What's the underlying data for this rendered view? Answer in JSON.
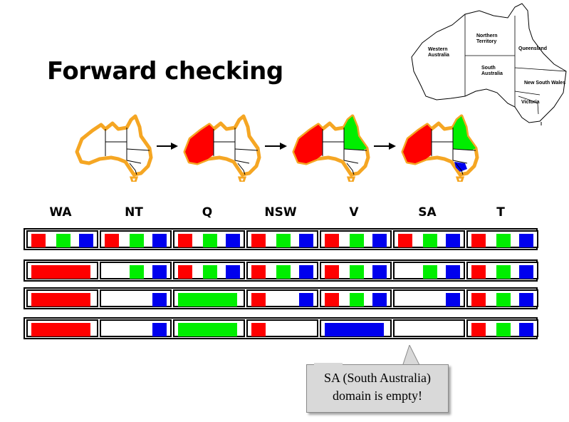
{
  "title": "Forward checking",
  "map_labels": {
    "western_australia": [
      "Western",
      "Australia"
    ],
    "northern_territory": [
      "Northern",
      "Territory"
    ],
    "queensland": "Queensland",
    "south_australia": [
      "South",
      "Australia"
    ],
    "new_south_wales": "New South Wales",
    "victoria": "Victoria"
  },
  "colors": {
    "red": "#ff0000",
    "green": "#00ee00",
    "blue": "#0000ee",
    "map_outline": "#f5a623"
  },
  "sequence_maps": [
    {
      "WA": null,
      "Q": null,
      "V": null
    },
    {
      "WA": "red",
      "Q": null,
      "V": null
    },
    {
      "WA": "red",
      "Q": "green",
      "V": null
    },
    {
      "WA": "red",
      "Q": "green",
      "V": "blue"
    }
  ],
  "columns": [
    "WA",
    "NT",
    "Q",
    "NSW",
    "V",
    "SA",
    "T"
  ],
  "rows": [
    [
      [
        "red",
        "green",
        "blue"
      ],
      [
        "red",
        "green",
        "blue"
      ],
      [
        "red",
        "green",
        "blue"
      ],
      [
        "red",
        "green",
        "blue"
      ],
      [
        "red",
        "green",
        "blue"
      ],
      [
        "red",
        "green",
        "blue"
      ],
      [
        "red",
        "green",
        "blue"
      ]
    ],
    [
      [
        "red"
      ],
      [
        "green",
        "blue"
      ],
      [
        "red",
        "green",
        "blue"
      ],
      [
        "red",
        "green",
        "blue"
      ],
      [
        "red",
        "green",
        "blue"
      ],
      [
        "green",
        "blue"
      ],
      [
        "red",
        "green",
        "blue"
      ]
    ],
    [
      [
        "red"
      ],
      [
        "blue"
      ],
      [
        "green"
      ],
      [
        "red",
        "blue"
      ],
      [
        "red",
        "green",
        "blue"
      ],
      [
        "blue"
      ],
      [
        "red",
        "green",
        "blue"
      ]
    ],
    [
      [
        "red"
      ],
      [
        "blue"
      ],
      [
        "green"
      ],
      [
        "red"
      ],
      [
        "blue"
      ],
      [],
      [
        "red",
        "green",
        "blue"
      ]
    ]
  ],
  "callout": {
    "line1": "SA (South Australia)",
    "line2": "domain is empty!"
  }
}
